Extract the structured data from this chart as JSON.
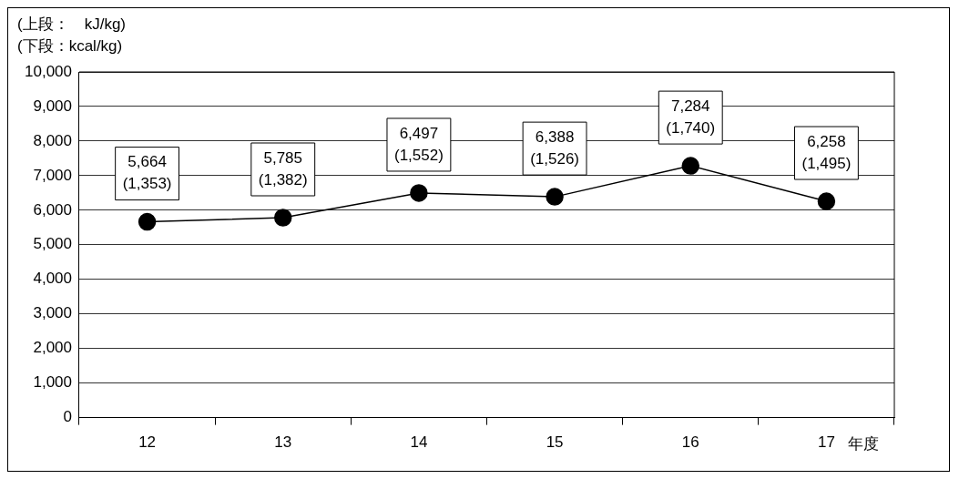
{
  "chart_data": {
    "type": "line",
    "xlabel": "年度",
    "annotations": [
      "(上段：　kJ/kg)",
      "(下段：kcal/kg)"
    ],
    "categories": [
      "12",
      "13",
      "14",
      "15",
      "16",
      "17"
    ],
    "series": [
      {
        "color": "#000000",
        "values": [
          5664,
          5785,
          6497,
          6388,
          7284,
          6258
        ],
        "value_labels": [
          "5,664\n(1,353)",
          "5,785\n(1,382)",
          "6,497\n(1,552)",
          "6,388\n(1,526)",
          "7,284\n(1,740)",
          "6,258\n(1,495)"
        ]
      }
    ],
    "ylim": [
      0,
      10000
    ],
    "yticks": [
      {
        "value": 0,
        "label": "0"
      },
      {
        "value": 1000,
        "label": "1,000"
      },
      {
        "value": 2000,
        "label": "2,000"
      },
      {
        "value": 3000,
        "label": "3,000"
      },
      {
        "value": 4000,
        "label": "4,000"
      },
      {
        "value": 5000,
        "label": "5,000"
      },
      {
        "value": 6000,
        "label": "6,000"
      },
      {
        "value": 7000,
        "label": "7,000"
      },
      {
        "value": 8000,
        "label": "8,000"
      },
      {
        "value": 9000,
        "label": "9,000"
      },
      {
        "value": 10000,
        "label": "10,000"
      }
    ],
    "grid": "y",
    "marker": "circle",
    "line_style": "solid",
    "legend": false
  }
}
